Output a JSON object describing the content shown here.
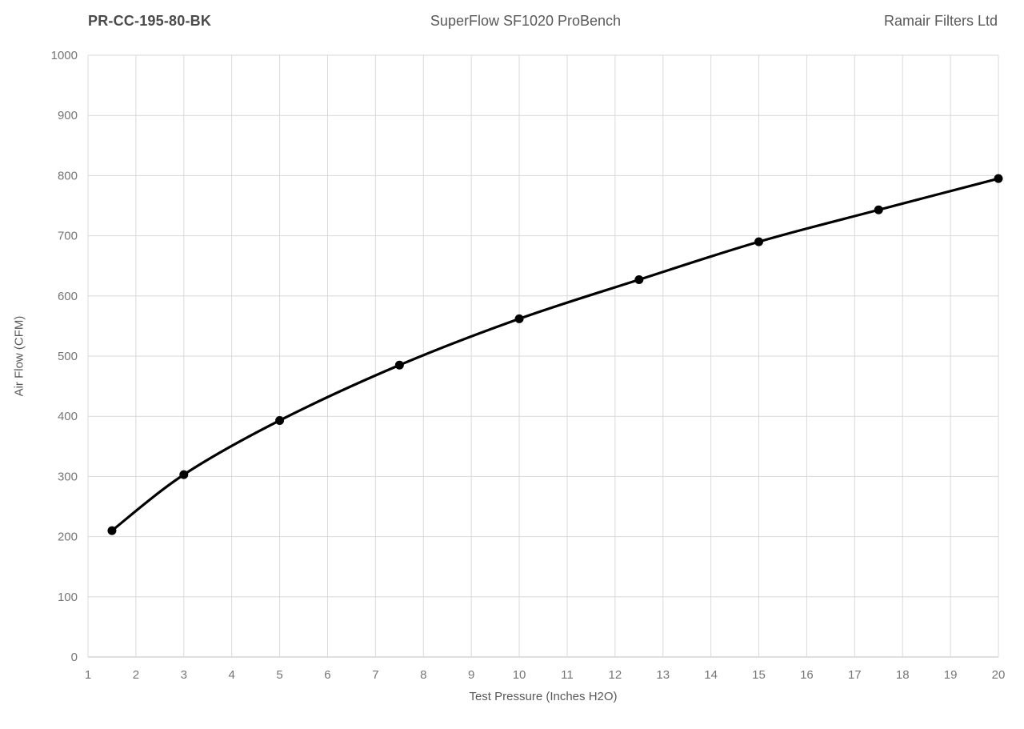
{
  "header": {
    "left_title": "PR-CC-195-80-BK",
    "center_title": "SuperFlow SF1020 ProBench",
    "right_title": "Ramair Filters Ltd"
  },
  "chart_data": {
    "type": "line",
    "title": "SuperFlow SF1020 ProBench",
    "xlabel": "Test Pressure (Inches H2O)",
    "ylabel": "Air Flow (CFM)",
    "xlim": [
      1,
      20
    ],
    "ylim": [
      0,
      1000
    ],
    "x_ticks": [
      1,
      2,
      3,
      4,
      5,
      6,
      7,
      8,
      9,
      10,
      11,
      12,
      13,
      14,
      15,
      16,
      17,
      18,
      19,
      20
    ],
    "y_ticks": [
      0,
      100,
      200,
      300,
      400,
      500,
      600,
      700,
      800,
      900,
      1000
    ],
    "grid": true,
    "legend": false,
    "smooth": true,
    "series": [
      {
        "name": "PR-CC-195-80-BK",
        "x": [
          1.5,
          3,
          5,
          7.5,
          10,
          12.5,
          15,
          17.5,
          20
        ],
        "y": [
          210,
          303,
          393,
          485,
          562,
          627,
          690,
          743,
          795
        ]
      }
    ],
    "colors": {
      "line": "#000000",
      "marker": "#000000",
      "gridline": "#d9d9d9",
      "axis_line": "#bfbfbf",
      "tick_text": "#757575",
      "title_text": "#595959"
    },
    "marker_radius": 5.5,
    "line_width": 3.2
  }
}
